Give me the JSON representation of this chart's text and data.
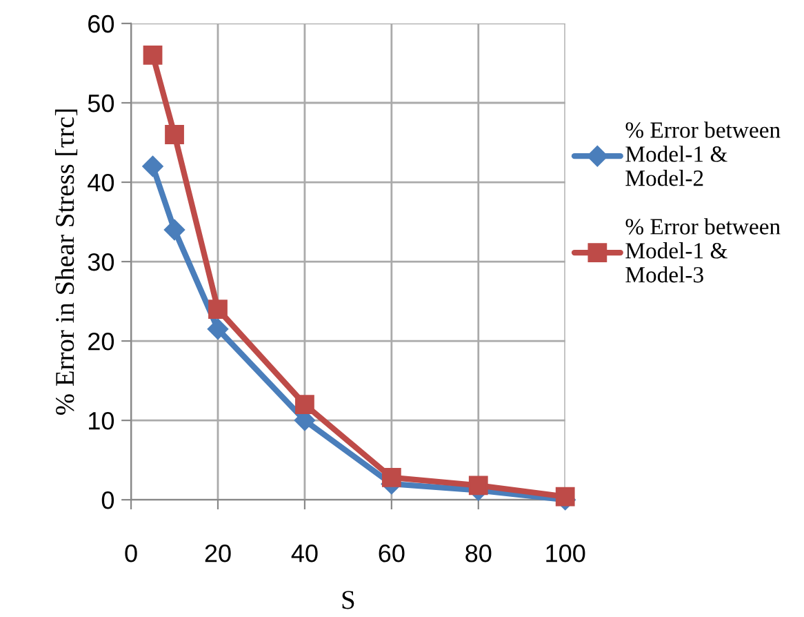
{
  "chart_data": {
    "type": "line",
    "xlabel": "S",
    "ylabel": "% Error in Shear Stress [τrc]",
    "x": [
      5,
      10,
      20,
      40,
      60,
      80,
      100
    ],
    "series": [
      {
        "name": "% Error between Model-1 & Model-2",
        "color": "#4a7ebb",
        "marker": "diamond",
        "values": [
          42,
          34,
          21.5,
          10,
          2,
          1.2,
          0
        ]
      },
      {
        "name": "% Error between Model-1 & Model-3",
        "color": "#be4b48",
        "marker": "square",
        "values": [
          56,
          46,
          24,
          12,
          2.8,
          1.8,
          0.4
        ]
      }
    ],
    "xlim": [
      0,
      100
    ],
    "xticks": [
      0,
      20,
      40,
      60,
      80,
      100
    ],
    "ylim": [
      0,
      60
    ],
    "yticks": [
      0,
      10,
      20,
      30,
      40,
      50,
      60
    ],
    "grid": true,
    "legend": "right",
    "line_style": "solid"
  }
}
